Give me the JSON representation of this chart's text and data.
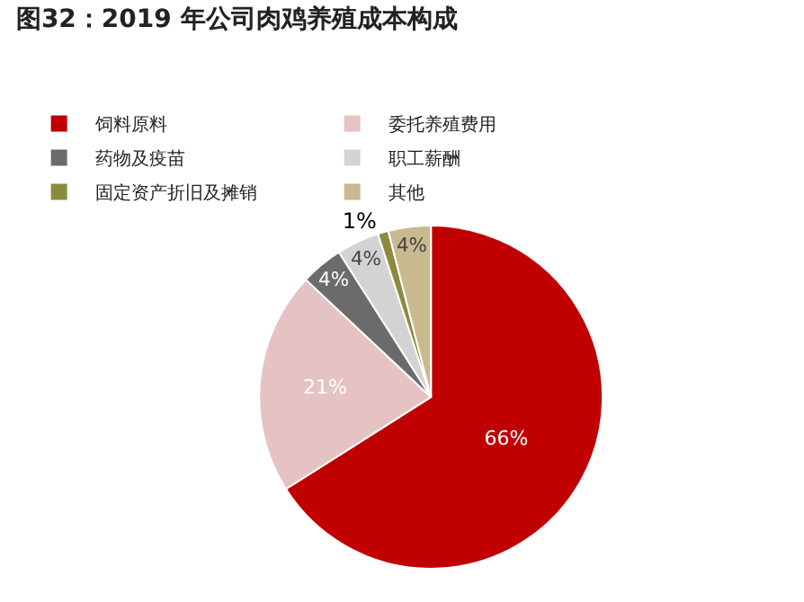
{
  "chart_data": {
    "type": "pie",
    "title": "图32：2019 年公司肉鸡养殖成本构成",
    "categories": [
      "饲料原料",
      "委托养殖费用",
      "药物及疫苗",
      "职工薪酬",
      "固定资产折旧及摊销",
      "其他"
    ],
    "values": [
      66,
      21,
      4,
      4,
      1,
      4
    ],
    "colors": [
      "#c00000",
      "#e6c3c3",
      "#6b6b6b",
      "#d3d3d3",
      "#8c8a3f",
      "#c9b98f"
    ],
    "value_labels": [
      "66%",
      "21%",
      "4%",
      "4%",
      "1%",
      "4%"
    ],
    "legend": "top"
  }
}
